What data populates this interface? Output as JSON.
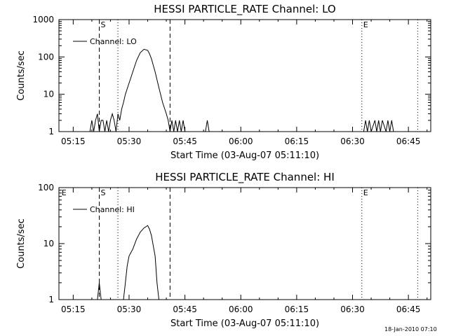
{
  "footer_date": "18-Jan-2010 07:10",
  "chart_data": [
    {
      "type": "line",
      "title": "HESSI PARTICLE_RATE Channel: LO",
      "xlabel": "Start Time (03-Aug-07 05:11:10)",
      "ylabel": "Counts/sec",
      "yscale": "log",
      "ylim": [
        1,
        1000
      ],
      "xlim": [
        "05:11:10",
        "06:51:00"
      ],
      "x_ticks": [
        "05:15",
        "05:30",
        "05:45",
        "06:00",
        "06:15",
        "06:30",
        "06:45"
      ],
      "y_ticks": [
        "1",
        "10",
        "100",
        "1000"
      ],
      "grid": false,
      "legend": "top-left",
      "series": [
        {
          "name": "Channel: LO",
          "x": [
            "05:19:30",
            "05:20:00",
            "05:20:30",
            "05:21:00",
            "05:21:30",
            "05:22:00",
            "05:22:30",
            "05:23:00",
            "05:23:30",
            "05:24:00",
            "05:24:30",
            "05:25:00",
            "05:25:30",
            "05:26:00",
            "05:26:30",
            "05:27:00",
            "05:27:30",
            "05:28:00",
            "05:28:30",
            "05:29:00",
            "05:30:00",
            "05:31:00",
            "05:32:00",
            "05:33:00",
            "05:34:00",
            "05:35:00",
            "05:35:30",
            "05:36:00",
            "05:37:00",
            "05:38:00",
            "05:39:00",
            "05:40:00",
            "05:40:30",
            "05:41:00",
            "05:41:30",
            "05:42:00",
            "05:42:30",
            "05:43:00",
            "05:43:30",
            "05:44:00",
            "05:44:30",
            "05:45:00",
            "05:45:30",
            "05:46:00",
            "05:50:30",
            "05:51:00",
            "05:51:30",
            "06:33:00",
            "06:33:30",
            "06:34:00",
            "06:34:30",
            "06:35:00",
            "06:36:00",
            "06:36:30",
            "06:37:00",
            "06:37:30",
            "06:38:00",
            "06:39:00",
            "06:39:30",
            "06:40:00",
            "06:40:30",
            "06:41:00"
          ],
          "values": [
            1,
            2,
            1,
            2,
            3,
            1,
            2,
            2,
            1,
            2,
            1,
            2,
            3,
            2,
            1,
            3,
            2,
            4,
            6,
            10,
            20,
            40,
            80,
            130,
            160,
            150,
            120,
            90,
            40,
            15,
            6,
            3,
            2,
            1,
            2,
            1,
            2,
            1,
            2,
            1,
            2,
            1,
            1,
            1,
            1,
            2,
            1,
            1,
            2,
            1,
            2,
            1,
            2,
            1,
            2,
            1,
            2,
            1,
            2,
            1,
            2,
            1
          ]
        }
      ],
      "markers": [
        {
          "label": "S",
          "time": "05:22:00",
          "style": "dashed"
        },
        {
          "label": "",
          "time": "05:41:00",
          "style": "dashed"
        },
        {
          "label": "",
          "time": "05:27:00",
          "style": "dotted"
        },
        {
          "label": "E",
          "time": "06:32:30",
          "style": "dotted"
        },
        {
          "label": "",
          "time": "06:47:30",
          "style": "dotted"
        }
      ]
    },
    {
      "type": "line",
      "title": "HESSI PARTICLE_RATE Channel: HI",
      "xlabel": "Start Time (03-Aug-07 05:11:10)",
      "ylabel": "Counts/sec",
      "yscale": "log",
      "ylim": [
        1,
        100
      ],
      "xlim": [
        "05:11:10",
        "06:51:00"
      ],
      "x_ticks": [
        "05:15",
        "05:30",
        "05:45",
        "06:00",
        "06:15",
        "06:30",
        "06:45"
      ],
      "y_ticks": [
        "1",
        "10",
        "100"
      ],
      "grid": false,
      "legend": "top-left",
      "series": [
        {
          "name": "Channel: HI",
          "x": [
            "05:21:30",
            "05:22:00",
            "05:22:30",
            "05:28:30",
            "05:29:00",
            "05:29:30",
            "05:30:00",
            "05:31:00",
            "05:32:00",
            "05:33:00",
            "05:34:00",
            "05:35:00",
            "05:35:30",
            "05:36:00",
            "05:37:00",
            "05:37:30",
            "05:38:00"
          ],
          "values": [
            1,
            2,
            1,
            1,
            2,
            4,
            6,
            8,
            12,
            16,
            19,
            21,
            18,
            14,
            6,
            2,
            1
          ]
        }
      ],
      "markers": [
        {
          "label": "S",
          "time": "05:22:00",
          "style": "dashed"
        },
        {
          "label": "",
          "time": "05:41:00",
          "style": "dashed"
        },
        {
          "label": "",
          "time": "05:27:00",
          "style": "dotted"
        },
        {
          "label": "E",
          "time": "06:32:30",
          "style": "dotted"
        },
        {
          "label": "",
          "time": "06:47:30",
          "style": "dotted"
        },
        {
          "label": "E",
          "time": "05:11:30",
          "style": "label-only"
        }
      ]
    }
  ]
}
